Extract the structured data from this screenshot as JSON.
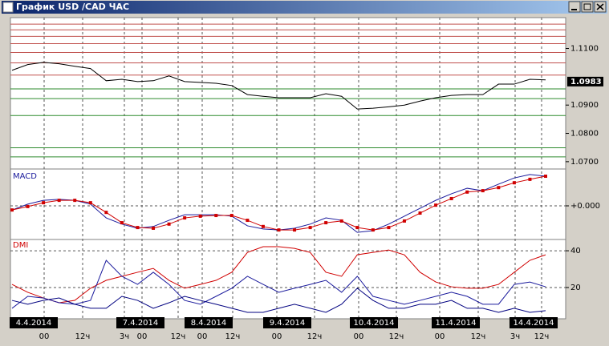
{
  "window": {
    "title": "График USD /CAD  ЧАС"
  },
  "price_panel": {
    "type": "line",
    "ylim": [
      1.0677,
      1.1209
    ],
    "yticks": [
      {
        "value": 1.11,
        "label": "1.1100"
      },
      {
        "value": 1.09,
        "label": "1.0900"
      },
      {
        "value": 1.08,
        "label": "1.0800"
      },
      {
        "value": 1.07,
        "label": "1.0700"
      }
    ],
    "current": {
      "value": 1.0983,
      "label": "1.0983"
    },
    "levels": [
      {
        "color": "#c0504d",
        "values": [
          1.1186,
          1.1166,
          1.1143,
          1.1117,
          1.1086,
          1.1049,
          1.1006
        ]
      },
      {
        "color": "#2e8b2e",
        "values": [
          1.0957,
          1.0923,
          1.0863,
          1.0749,
          1.0717
        ]
      }
    ],
    "series": [
      {
        "color": "#000000",
        "values": [
          1.1023,
          1.1043,
          1.1051,
          1.1046,
          1.1037,
          1.1029,
          1.0986,
          1.0991,
          1.0983,
          1.0986,
          1.1003,
          1.0983,
          1.098,
          1.0977,
          1.0969,
          1.0937,
          1.0931,
          1.0926,
          1.0926,
          1.0926,
          1.094,
          1.0931,
          1.0886,
          1.0889,
          1.0894,
          1.09,
          1.0914,
          1.0926,
          1.0934,
          1.0937,
          1.0937,
          1.0974,
          1.0974,
          1.0991,
          1.0989
        ]
      }
    ]
  },
  "macd_panel": {
    "type": "line",
    "label": "MACD",
    "ylim": [
      -0.93,
      1.0
    ],
    "yticks": [
      {
        "value": 0,
        "label": "+0.000"
      }
    ],
    "series": [
      {
        "color": "#1a1a9c",
        "values": [
          -0.12,
          0.05,
          0.16,
          0.19,
          0.16,
          0.05,
          -0.35,
          -0.53,
          -0.65,
          -0.6,
          -0.42,
          -0.26,
          -0.26,
          -0.26,
          -0.3,
          -0.58,
          -0.67,
          -0.7,
          -0.65,
          -0.53,
          -0.35,
          -0.42,
          -0.77,
          -0.72,
          -0.53,
          -0.3,
          -0.07,
          0.16,
          0.35,
          0.51,
          0.44,
          0.63,
          0.81,
          0.91,
          0.86
        ]
      },
      {
        "color": "#d00000",
        "values": [
          -0.12,
          -0.02,
          0.09,
          0.16,
          0.16,
          0.09,
          -0.19,
          -0.49,
          -0.63,
          -0.65,
          -0.53,
          -0.35,
          -0.3,
          -0.28,
          -0.28,
          -0.42,
          -0.6,
          -0.7,
          -0.7,
          -0.63,
          -0.49,
          -0.44,
          -0.63,
          -0.7,
          -0.63,
          -0.44,
          -0.21,
          0.02,
          0.21,
          0.4,
          0.44,
          0.53,
          0.67,
          0.77,
          0.86
        ]
      }
    ]
  },
  "dmi_panel": {
    "type": "line",
    "label": "DMI",
    "ylim": [
      3,
      45.7
    ],
    "yticks": [
      40,
      20
    ],
    "series": [
      {
        "color": "#d00000",
        "values": [
          21.7,
          17.4,
          14.3,
          11.7,
          13.0,
          19.6,
          23.9,
          26.1,
          28.3,
          30.4,
          23.9,
          19.6,
          21.7,
          23.9,
          28.3,
          39.1,
          42.2,
          42.2,
          41.3,
          39.1,
          28.3,
          26.1,
          37.8,
          39.1,
          40.4,
          37.8,
          28.3,
          23.0,
          20.4,
          19.6,
          19.6,
          21.7,
          28.3,
          34.8,
          37.8
        ]
      },
      {
        "color": "#1a1a9c",
        "values": [
          8.7,
          15.2,
          14.3,
          11.7,
          10.9,
          13.0,
          34.8,
          26.1,
          21.7,
          28.3,
          21.7,
          13.0,
          10.9,
          15.2,
          19.6,
          26.1,
          21.7,
          17.4,
          19.6,
          21.7,
          23.9,
          17.4,
          26.1,
          15.2,
          13.0,
          10.9,
          13.0,
          15.2,
          17.4,
          15.2,
          10.9,
          10.9,
          21.7,
          23.0,
          20.4
        ]
      },
      {
        "color": "#000080",
        "values": [
          13.0,
          10.9,
          13.0,
          14.3,
          10.9,
          8.7,
          8.7,
          15.2,
          13.0,
          8.7,
          11.7,
          15.2,
          13.0,
          10.9,
          8.7,
          6.5,
          6.5,
          8.7,
          10.9,
          8.7,
          6.5,
          10.9,
          19.6,
          13.0,
          8.7,
          8.7,
          10.9,
          10.9,
          13.0,
          8.7,
          8.7,
          6.5,
          8.7,
          6.5,
          7.4
        ]
      }
    ]
  },
  "dates": [
    "4.4.2014",
    "7.4.2014",
    "8.4.2014",
    "9.4.2014",
    "10.4.2014",
    "11.4.2014",
    "14.4.2014"
  ],
  "hours": [
    "00",
    "12ч",
    "3ч",
    "00",
    "12ч",
    "00",
    "12ч",
    "00",
    "12ч",
    "00",
    "12ч",
    "00",
    "12ч",
    "3ч",
    "12ч"
  ]
}
